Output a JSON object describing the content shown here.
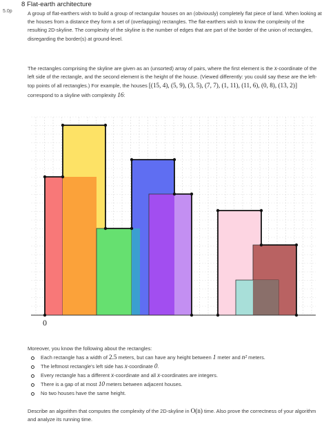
{
  "points": "5.0p",
  "title": "8 Flat-earth architecture",
  "paragraphs": [
    [
      "A group of flat-earthers wish to build a group of rectangular houses on an (obviously) completely flat piece of land. When looking at the houses from a distance they form a set of (overlapping) rectangles. The flat-earthers wish to know the complexity of the resulting 2D-skyline. The complexity of the skyline is the number of edges that are part of the border of the union of rectangles, disregarding the border(s) at ground-level."
    ],
    [
      "The rectangles comprising the skyline are given as an (unsorted) array of pairs, where the first element is the ",
      "x",
      "-coordinate of the left side of the rectangle, and the second element is the height of the house. (Viewed differently: you could say these are the left-top points of all rectangles.) For example, the houses ",
      "[(15, 4), (5, 9), (3, 5), (7, 7), (1, 11), (11, 6), (0, 8), (13, 2)]",
      " correspond to a skyline with complexity ",
      "16",
      ":"
    ]
  ],
  "figure": {
    "axis_label": "0"
  },
  "facts_intro": "Moreover, you know the following about the rectangles:",
  "facts": [
    [
      "Each rectangle has a width of ",
      "2.5",
      " meters, but can have any height between ",
      "1",
      " meter and ",
      "n²",
      " meters."
    ],
    [
      "The leftmost rectangle's left side has ",
      "x",
      "-coordinate ",
      "0",
      "."
    ],
    [
      "Every rectangle has a different ",
      "x",
      "-coordinate and all ",
      "x",
      "-coordinates are integers."
    ],
    [
      "There is a gap of at most ",
      "10",
      " meters between adjacent houses."
    ],
    [
      "No two houses have the same height."
    ]
  ],
  "question": [
    "Describe an algorithm that computes the complexity of the 2D-skyline in ",
    "O(n)",
    " time. Also prove the correctness of your algorithm and analyze its running time."
  ]
}
